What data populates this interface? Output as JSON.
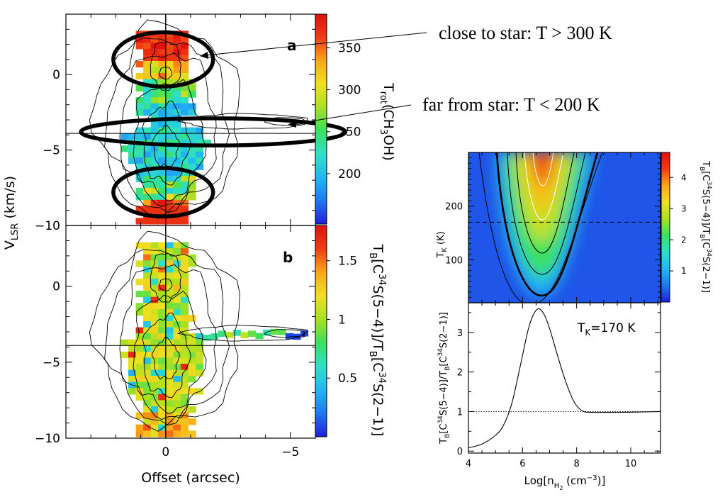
{
  "annotations": {
    "close": "close to star: T > 300 K",
    "far": "far from star: T < 200 K"
  },
  "colors": {
    "colormap": [
      "#1f1fe0",
      "#1f78f0",
      "#22b8f0",
      "#2ee0c8",
      "#3ae060",
      "#a8e020",
      "#f0e020",
      "#f8a818",
      "#f03c14",
      "#e01010"
    ],
    "contour": "#000000",
    "white_contour": "#ffffff"
  },
  "chart_data": [
    {
      "id": "a",
      "type": "heatmap",
      "panel_label": "a",
      "xlabel": "Offset (arcsec)",
      "ylabel": "V_LSR (km/s)",
      "xlim": [
        4,
        -6
      ],
      "ylim": [
        -10,
        4
      ],
      "xticks": [
        "0",
        "-5"
      ],
      "yticks": [
        "0",
        "-5",
        "-10"
      ],
      "colorbar_label": "T_rot(CH3OH)",
      "colorbar_range": [
        140,
        390
      ],
      "colorbar_ticks": [
        "200",
        "250",
        "300",
        "350"
      ],
      "reference_lines": {
        "x": 0,
        "y": -3.9
      },
      "ellipses": [
        {
          "cx": 0.1,
          "cy": 1.0,
          "rx": 2.0,
          "ry": 1.8
        },
        {
          "cx": -1.9,
          "cy": -3.8,
          "rx": 5.3,
          "ry": 0.9
        },
        {
          "cx": 0.1,
          "cy": -7.8,
          "rx": 2.0,
          "ry": 1.6
        }
      ]
    },
    {
      "id": "b",
      "type": "heatmap",
      "panel_label": "b",
      "xlabel": "Offset (arcsec)",
      "ylabel": "V_LSR (km/s)",
      "xlim": [
        4,
        -6
      ],
      "ylim": [
        -10,
        4
      ],
      "xticks": [
        "0",
        "-5"
      ],
      "yticks": [
        "0",
        "-5",
        "-10"
      ],
      "colorbar_label": "T_B[C34S(5-4)]/T_B[C34S(2-1)]",
      "colorbar_range": [
        0,
        1.8
      ],
      "colorbar_ticks": [
        "0.5",
        "1",
        "1.5"
      ],
      "reference_lines": {
        "x": 0,
        "y": -3.9
      }
    },
    {
      "id": "c",
      "type": "heatmap",
      "xlabel": "Log[n_H2 (cm-3)]",
      "ylabel": "T_K (K)",
      "xlim": [
        4,
        11.1
      ],
      "ylim": [
        20,
        300
      ],
      "yticks": [
        "100",
        "200"
      ],
      "colorbar_label": "T_B[C34S(5-4)]/T_B[C34S(2-1)]",
      "colorbar_range": [
        0,
        4.8
      ],
      "colorbar_ticks": [
        "1",
        "2",
        "3",
        "4"
      ],
      "reference_lines": {
        "y": 170
      }
    },
    {
      "id": "d",
      "type": "line",
      "xlabel": "Log[n_H2 (cm-3)]",
      "ylabel": "T_B[C34S(5-4)]/T_B[C34S(2-1)]",
      "annotation": "T_K=170 K",
      "xlim": [
        4,
        11.1
      ],
      "ylim": [
        -0.05,
        3.75
      ],
      "xticks": [
        "4",
        "6",
        "8",
        "10"
      ],
      "yticks": [
        "0",
        "1",
        "2",
        "3"
      ],
      "reference_lines": {
        "y": 1
      },
      "x": [
        4.0,
        4.5,
        5.0,
        5.3,
        5.6,
        5.9,
        6.2,
        6.4,
        6.6,
        6.8,
        7.0,
        7.3,
        7.6,
        7.9,
        8.2,
        8.6,
        9.5,
        10.5,
        11.1
      ],
      "y": [
        0.08,
        0.18,
        0.4,
        0.66,
        1.2,
        2.1,
        3.05,
        3.45,
        3.6,
        3.45,
        3.1,
        2.4,
        1.75,
        1.25,
        1.02,
        0.98,
        0.98,
        0.99,
        1.0
      ]
    }
  ]
}
